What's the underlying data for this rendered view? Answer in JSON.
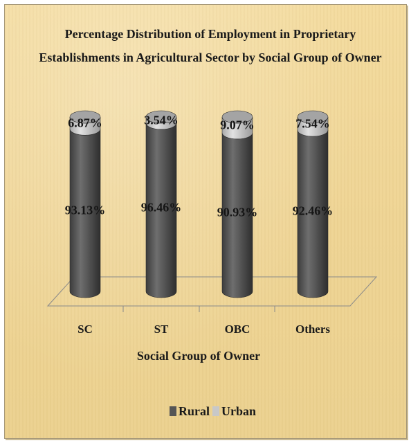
{
  "chart_data": {
    "type": "bar",
    "stacked": true,
    "percent_stacked": true,
    "title_lines": [
      "Percentage Distribution of Employment in Proprietary",
      "Establishments in Agricultural Sector by Social Group of Owner"
    ],
    "xlabel": "Social Group of Owner",
    "ylabel": "",
    "categories": [
      "SC",
      "ST",
      "OBC",
      "Others"
    ],
    "series": [
      {
        "name": "Rural",
        "values": [
          93.13,
          96.46,
          90.93,
          92.46
        ],
        "labels": [
          "93.13%",
          "96.46%",
          "90.93%",
          "92.46%"
        ],
        "color": "#5a5a5a"
      },
      {
        "name": "Urban",
        "values": [
          6.87,
          3.54,
          9.07,
          7.54
        ],
        "labels": [
          "6.87%",
          "3.54%",
          "9.07%",
          "7.54%"
        ],
        "color": "#c8c8c8"
      }
    ],
    "ylim": [
      0,
      100
    ],
    "grid": false,
    "legend_position": "bottom",
    "style": "3d-cylinder"
  }
}
